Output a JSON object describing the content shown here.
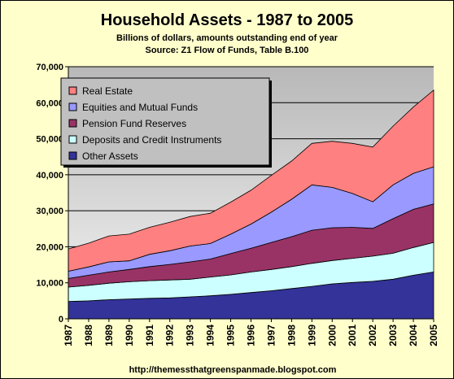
{
  "chart_data": {
    "type": "area",
    "stacked": true,
    "title": "Household Assets - 1987 to 2005",
    "subtitle_lines": [
      "Billions of dollars, amounts outstanding end of year",
      "Source: Z1 Flow of Funds, Table B.100"
    ],
    "footer": "http://themessthatgreenspanmade.blogspot.com",
    "xlabel": "",
    "ylabel": "",
    "ylim": [
      0,
      70000
    ],
    "yticks": [
      "0",
      "10,000",
      "20,000",
      "30,000",
      "40,000",
      "50,000",
      "60,000",
      "70,000"
    ],
    "ytick_values": [
      0,
      10000,
      20000,
      30000,
      40000,
      50000,
      60000,
      70000
    ],
    "grid": "horizontal",
    "legend_position": "top-left",
    "x": [
      "1987",
      "1988",
      "1989",
      "1990",
      "1991",
      "1992",
      "1993",
      "1994",
      "1995",
      "1996",
      "1997",
      "1998",
      "1999",
      "2000",
      "2001",
      "2002",
      "2003",
      "2004",
      "2005"
    ],
    "series_stack_order": "bottom-to-top",
    "series": [
      {
        "name": "Other Assets",
        "color": "#333399",
        "values": [
          4800,
          5000,
          5300,
          5500,
          5700,
          5800,
          6100,
          6400,
          6800,
          7300,
          7800,
          8400,
          9000,
          9700,
          10100,
          10400,
          11000,
          12100,
          13000
        ]
      },
      {
        "name": "Deposits and Credit Instruments",
        "color": "#ccffff",
        "values": [
          4000,
          4300,
          4600,
          4800,
          4900,
          5000,
          4900,
          5200,
          5400,
          5700,
          5900,
          6100,
          6400,
          6500,
          6700,
          7000,
          7200,
          7700,
          8200
        ]
      },
      {
        "name": "Pension Fund Reserves",
        "color": "#993366",
        "values": [
          2400,
          2800,
          3100,
          3400,
          3900,
          4300,
          4800,
          5000,
          5900,
          6600,
          7500,
          8300,
          9200,
          9100,
          8600,
          7700,
          9600,
          10600,
          10700
        ]
      },
      {
        "name": "Equities and Mutual Funds",
        "color": "#9999ff",
        "values": [
          2000,
          2300,
          2800,
          2400,
          3400,
          3800,
          4400,
          4300,
          5400,
          6700,
          8400,
          10400,
          12600,
          11200,
          9400,
          7400,
          9400,
          10000,
          10300
        ]
      },
      {
        "name": "Real Estate",
        "color": "#ff8080",
        "values": [
          6200,
          6600,
          7200,
          7400,
          7500,
          7900,
          8200,
          8400,
          8900,
          9400,
          10200,
          10600,
          11500,
          12800,
          13900,
          15200,
          16300,
          18400,
          21300
        ]
      }
    ],
    "legend_order": [
      "Real Estate",
      "Equities and Mutual Funds",
      "Pension Fund Reserves",
      "Deposits and Credit Instruments",
      "Other Assets"
    ]
  }
}
